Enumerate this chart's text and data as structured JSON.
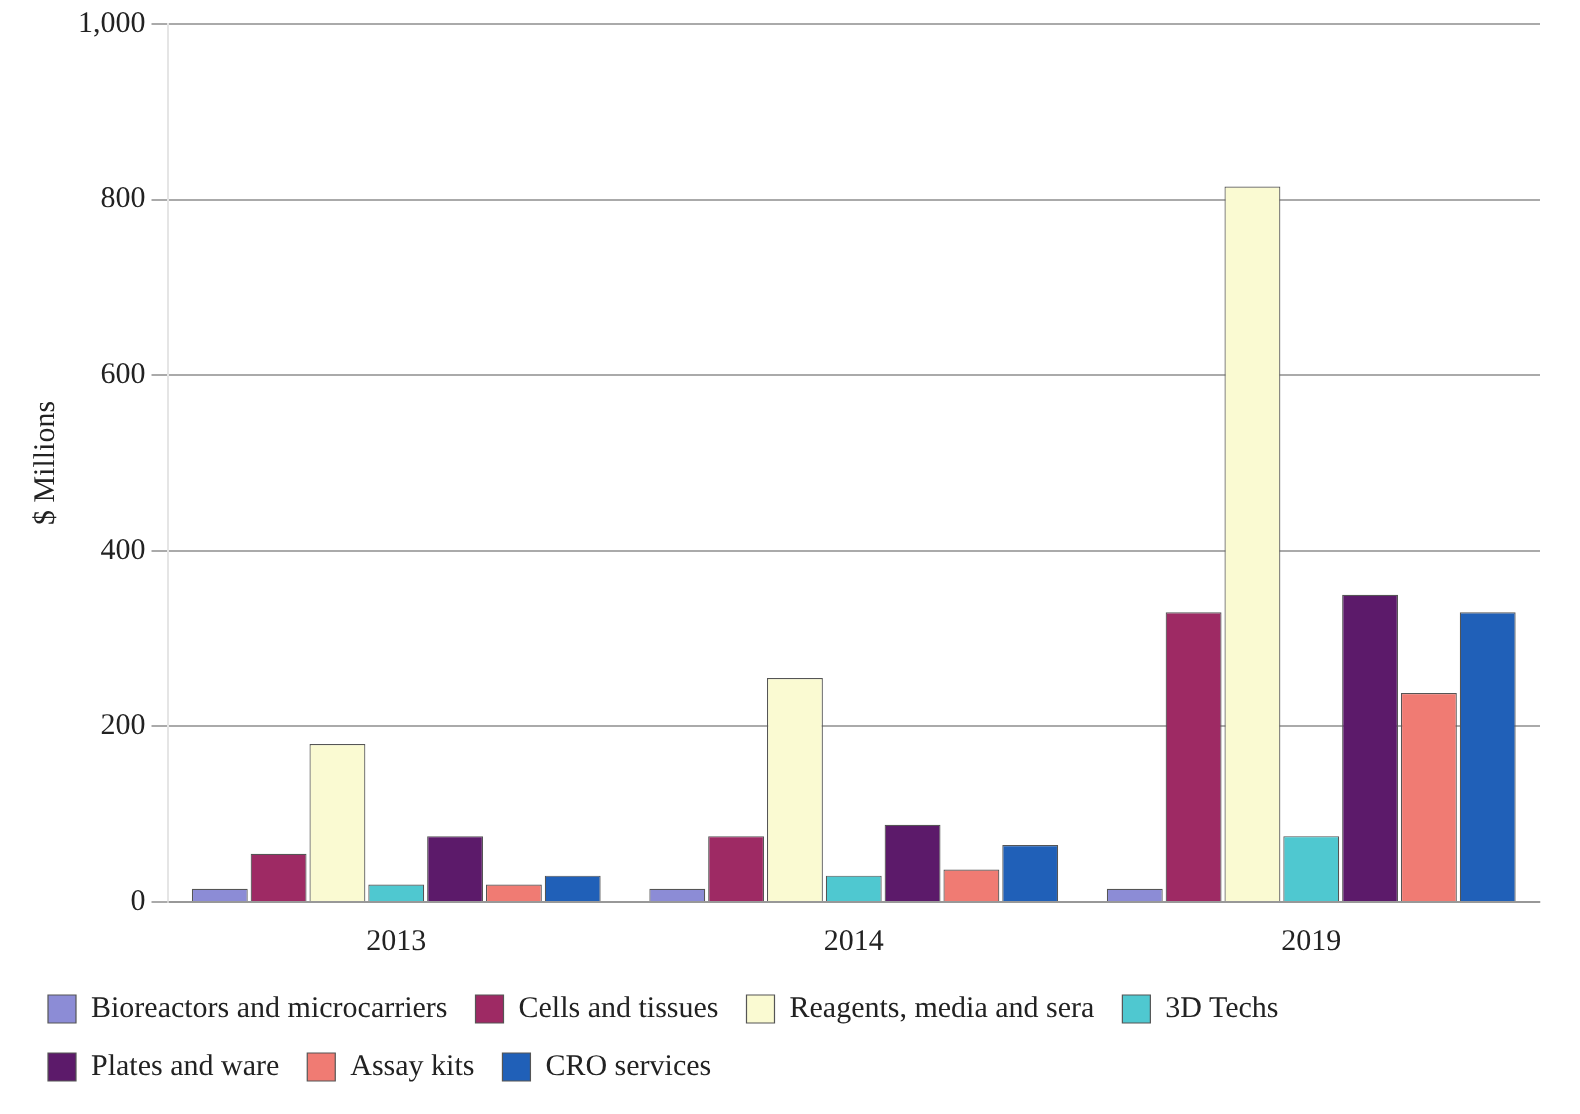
{
  "chart_data": {
    "type": "bar",
    "ylabel": "$ Millions",
    "categories": [
      "2013",
      "2014",
      "2019"
    ],
    "series": [
      {
        "name": "Bioreactors and microcarriers",
        "color": "#8c8cd6",
        "values": [
          15,
          15,
          15
        ]
      },
      {
        "name": "Cells and tissues",
        "color": "#9e2a64",
        "values": [
          55,
          75,
          330
        ]
      },
      {
        "name": "Reagents, media and sera",
        "color": "#fafad2",
        "values": [
          180,
          255,
          815
        ]
      },
      {
        "name": "3D Techs",
        "color": "#4fc8d0",
        "values": [
          20,
          30,
          75
        ]
      },
      {
        "name": "Plates and ware",
        "color": "#5c1a6a",
        "values": [
          75,
          88,
          350
        ]
      },
      {
        "name": "Assay kits",
        "color": "#f07b73",
        "values": [
          20,
          37,
          238
        ]
      },
      {
        "name": "CRO services",
        "color": "#2060b8",
        "values": [
          30,
          65,
          330
        ]
      }
    ],
    "ylim": [
      0,
      1000
    ],
    "yticks": [
      0,
      200,
      400,
      600,
      800,
      {
        "value": 1000,
        "label": "1,000"
      }
    ],
    "grid": "y",
    "legend": "bottom"
  }
}
